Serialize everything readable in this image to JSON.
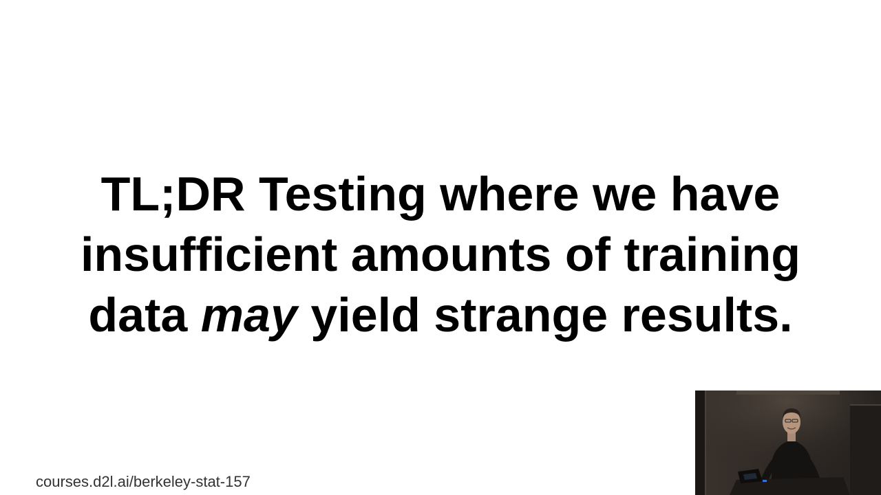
{
  "slide": {
    "headline": {
      "line1": "TL;DR Testing where we have",
      "line2": "insufficient amounts of training",
      "line3_before": "data ",
      "line3_emphasis": "may",
      "line3_after": " yield strange results."
    },
    "footer_url": "courses.d2l.ai/berkeley-stat-157"
  },
  "colors": {
    "background": "#ffffff",
    "text": "#000000",
    "footer_text": "#333333"
  }
}
